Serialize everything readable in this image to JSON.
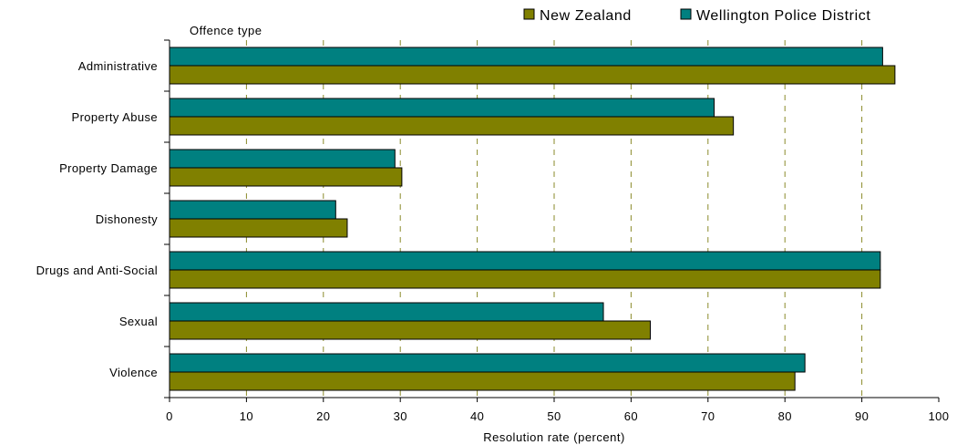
{
  "chart_data": {
    "type": "bar",
    "orientation": "horizontal",
    "categories": [
      "Administrative",
      "Property Abuse",
      "Property Damage",
      "Dishonesty",
      "Drugs and Anti-Social",
      "Sexual",
      "Violence"
    ],
    "series": [
      {
        "name": "Wellington Police District",
        "color": "#008080",
        "values": [
          92.7,
          70.8,
          29.3,
          21.6,
          92.4,
          56.4,
          82.6
        ]
      },
      {
        "name": "New Zealand",
        "color": "#808000",
        "values": [
          94.3,
          73.3,
          30.2,
          23.1,
          92.4,
          62.5,
          81.3
        ]
      }
    ],
    "legend_order": [
      "New Zealand",
      "Wellington Police District"
    ],
    "legend_position": "top-right",
    "xlabel": "Resolution rate (percent)",
    "ylabel": "Offence type",
    "xlim": [
      0,
      100
    ],
    "x_ticks": [
      0,
      10,
      20,
      30,
      40,
      50,
      60,
      70,
      80,
      90,
      100
    ],
    "grid": "vertical dashed"
  }
}
